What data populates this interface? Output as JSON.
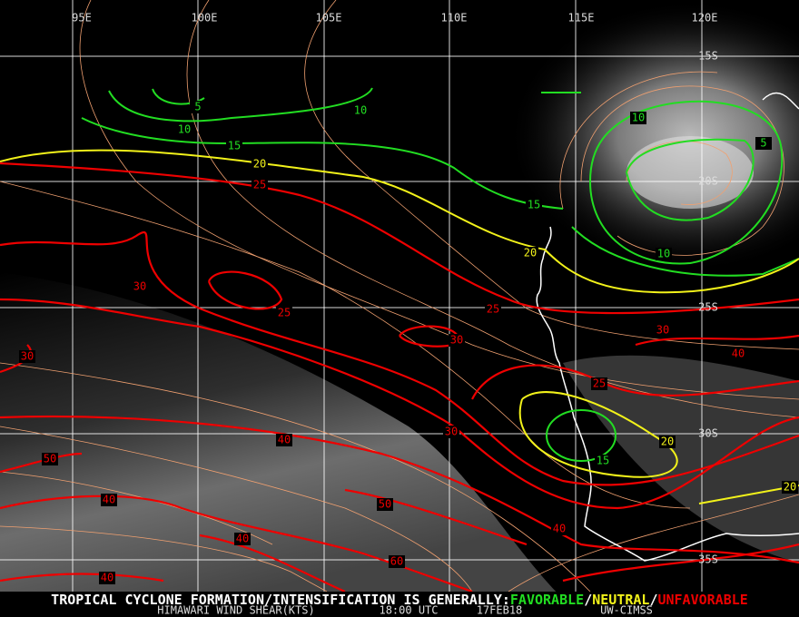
{
  "map": {
    "longitude_labels": [
      "95E",
      "100E",
      "105E",
      "110E",
      "115E",
      "120E"
    ],
    "latitude_labels": [
      "15S",
      "20S",
      "25S",
      "30S",
      "35S"
    ],
    "contour_labels": [
      "5",
      "10",
      "10",
      "15",
      "15",
      "10",
      "5",
      "10",
      "15",
      "20",
      "20",
      "20",
      "20",
      "25",
      "30",
      "25",
      "25",
      "30",
      "30",
      "40",
      "25",
      "30",
      "50",
      "40",
      "30",
      "40",
      "50",
      "40",
      "40",
      "60",
      "40"
    ],
    "legend": [
      "TROPICAL CYCLONE FORMATION/INTENSIFICATION IS GENERALLY:",
      "FAVORABLE",
      "/",
      "NEUTRAL",
      "/",
      "UNFAVORABLE"
    ],
    "footer": [
      "HIMAWARI WIND SHEAR(KTS)",
      "18:00 UTC",
      "17FEB18",
      "UW-CIMSS"
    ]
  }
}
